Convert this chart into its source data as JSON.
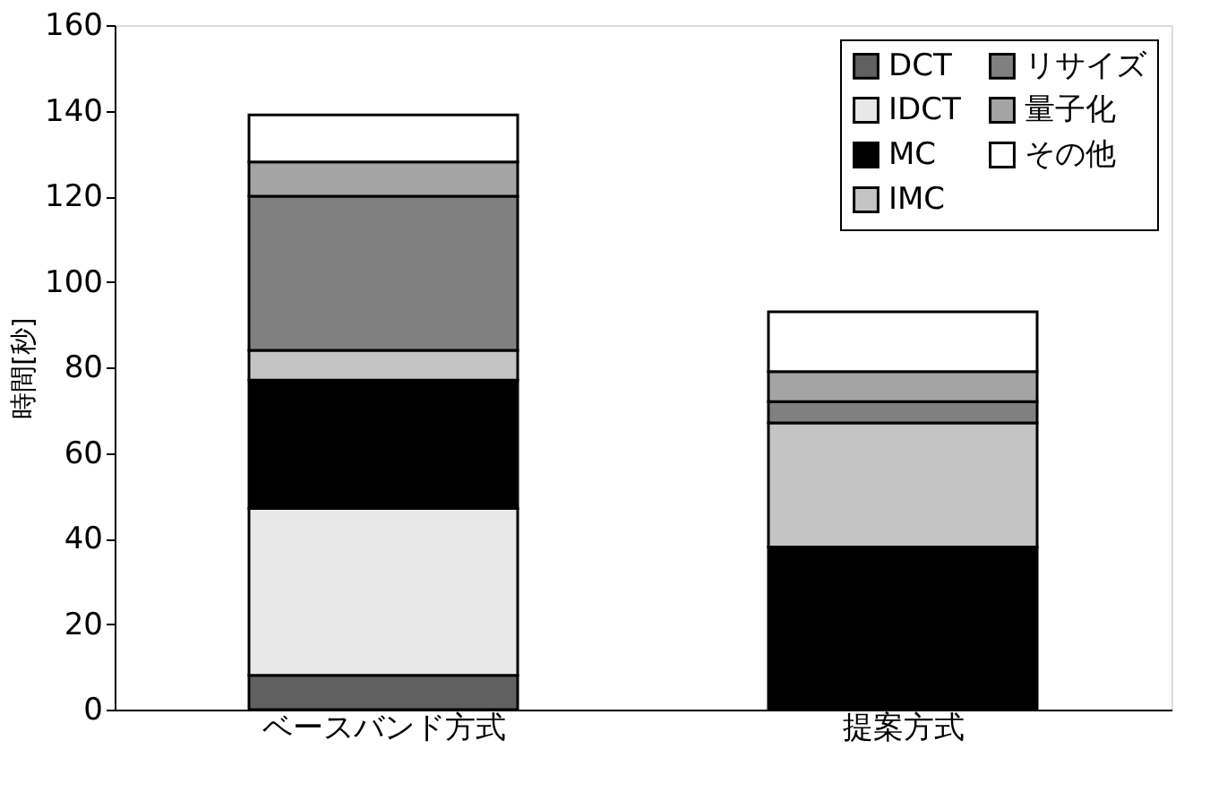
{
  "chart_data": {
    "type": "bar",
    "stacked": true,
    "ylabel": "時間[秒]",
    "categories": [
      "ベースバンド方式",
      "提案方式"
    ],
    "series": [
      {
        "name": "DCT",
        "color": "#606060",
        "values": [
          8,
          0
        ]
      },
      {
        "name": "IDCT",
        "color": "#e8e8e8",
        "values": [
          39,
          0
        ]
      },
      {
        "name": "MC",
        "color": "#000000",
        "values": [
          30,
          38
        ]
      },
      {
        "name": "IMC",
        "color": "#c4c4c4",
        "values": [
          7,
          29
        ]
      },
      {
        "name": "リサイズ",
        "color": "#808080",
        "values": [
          36,
          5
        ]
      },
      {
        "name": "量子化",
        "color": "#a4a4a4",
        "values": [
          8,
          7
        ]
      },
      {
        "name": "その他",
        "color": "#ffffff",
        "values": [
          11,
          14
        ]
      }
    ],
    "ylim": [
      0,
      160
    ],
    "yticks": [
      0,
      20,
      40,
      60,
      80,
      100,
      120,
      140,
      160
    ],
    "grid": false,
    "legend": "top right"
  }
}
